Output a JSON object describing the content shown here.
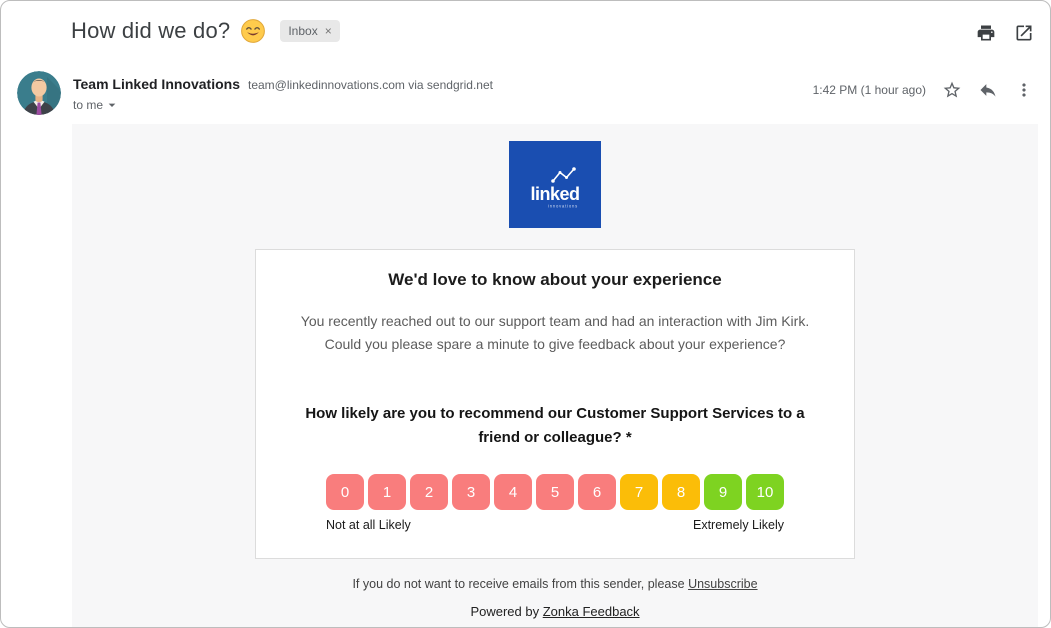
{
  "subject": {
    "title": "How did we do?",
    "emoji_name": "smiling-face-emoji",
    "inbox_label": "Inbox",
    "inbox_close": "×"
  },
  "header": {
    "sender_name": "Team Linked Innovations",
    "sender_email": "team@linkedinnovations.com via sendgrid.net",
    "recipient": "to me",
    "timestamp": "1:42 PM (1 hour ago)"
  },
  "email": {
    "logo": {
      "brand": "linked",
      "sub_brand": "innovations",
      "bg_color": "#1a4eb1"
    },
    "card": {
      "heading": "We'd love to know about your experience",
      "body_lines": [
        "You recently reached out to our support team and had an interaction with Jim Kirk.",
        "Could you please spare a minute to give feedback about your experience?"
      ],
      "question_lines": [
        "How likely are you to recommend our Customer Support Services to a",
        "friend or colleague? *"
      ],
      "nps": {
        "values": [
          "0",
          "1",
          "2",
          "3",
          "4",
          "5",
          "6",
          "7",
          "8",
          "9",
          "10"
        ],
        "colors": {
          "detractor": "#f97d7d",
          "passive": "#fbbd08",
          "promoter": "#7ed321"
        },
        "detractor_max_index": 6,
        "passive_max_index": 8,
        "left_label": "Not at all Likely",
        "right_label": "Extremely Likely"
      }
    },
    "footer": {
      "unsubscribe_text": "If you do not want to receive emails from this sender, please",
      "unsubscribe_link": "Unsubscribe",
      "powered_by_text": "Powered by",
      "powered_by_link": "Zonka Feedback"
    }
  }
}
